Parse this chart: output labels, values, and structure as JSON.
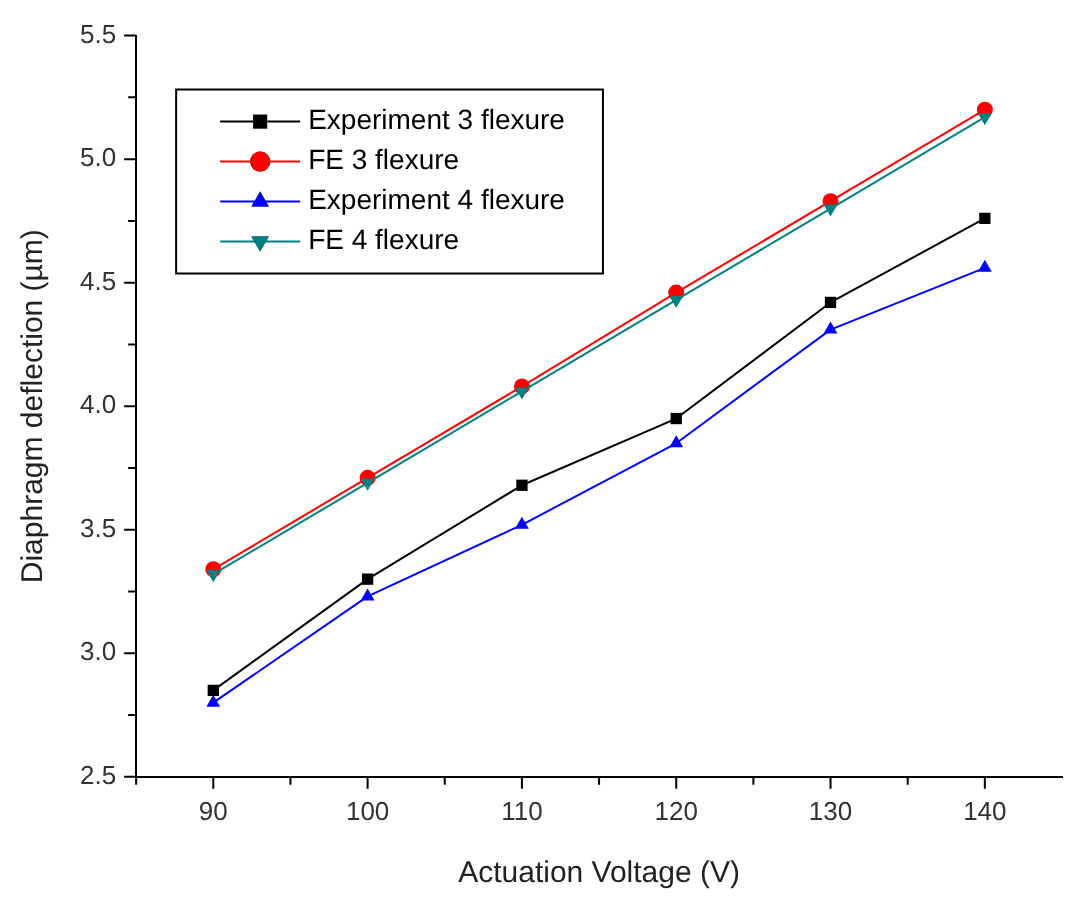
{
  "chart_data": {
    "type": "line",
    "xlabel": "Actuation Voltage (V)",
    "ylabel": "Diaphragm deflection (µm)",
    "x": [
      90,
      100,
      110,
      120,
      130,
      140
    ],
    "series": [
      {
        "name": "Experiment 3 flexure",
        "color": "#000000",
        "marker": "square",
        "values": [
          2.85,
          3.3,
          3.68,
          3.95,
          4.42,
          4.76
        ]
      },
      {
        "name": "FE 3 flexure",
        "color": "#ff0000",
        "marker": "circle",
        "values": [
          3.34,
          3.71,
          4.08,
          4.46,
          4.83,
          5.2
        ]
      },
      {
        "name": "Experiment 4 flexure",
        "color": "#0000ff",
        "marker": "triangle",
        "values": [
          2.8,
          3.23,
          3.52,
          3.85,
          4.31,
          4.56
        ]
      },
      {
        "name": "FE 4 flexure",
        "color": "#008080",
        "marker": "triangle-down",
        "values": [
          3.32,
          3.69,
          4.06,
          4.43,
          4.8,
          5.17
        ]
      }
    ],
    "xlim": [
      85,
      145
    ],
    "xticks": [
      {
        "value": 85,
        "label": null
      },
      90,
      {
        "value": 95,
        "label": null
      },
      100,
      {
        "value": 105,
        "label": null
      },
      110,
      {
        "value": 115,
        "label": null
      },
      120,
      {
        "value": 125,
        "label": null
      },
      130,
      {
        "value": 135,
        "label": null
      },
      140
    ],
    "ylim": [
      2.5,
      5.5
    ],
    "yticks": [
      2.5,
      {
        "value": 2.75,
        "label": null
      },
      {
        "value": 3,
        "label": "3.0"
      },
      {
        "value": 3.25,
        "label": null
      },
      3.5,
      {
        "value": 3.75,
        "label": null
      },
      {
        "value": 4,
        "label": "4.0"
      },
      {
        "value": 4.25,
        "label": null
      },
      4.5,
      {
        "value": 4.75,
        "label": null
      },
      {
        "value": 5,
        "label": "5.0"
      },
      {
        "value": 5.25,
        "label": null
      },
      5.5
    ],
    "grid": false,
    "legend": "top left",
    "line_style": "solid"
  }
}
